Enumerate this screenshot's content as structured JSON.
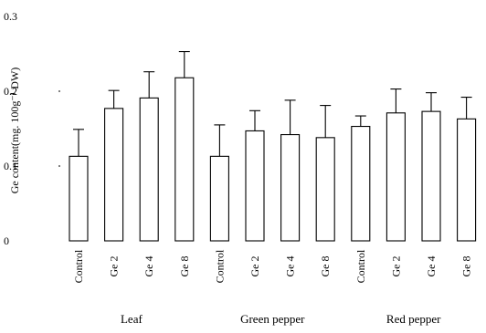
{
  "chart_data": {
    "type": "bar",
    "ylabel": "Ge content(mg. 100g⁻¹ DW)",
    "ylim": [
      0,
      0.3
    ],
    "yticks": [
      "0",
      "0.1",
      "0.2",
      "0.3"
    ],
    "ytick_values": [
      0,
      0.1,
      0.2,
      0.3
    ],
    "grid": false,
    "categories": [
      "Control",
      "Ge 2",
      "Ge 4",
      "Ge 8",
      "Control",
      "Ge 2",
      "Ge 4",
      "Ge 8",
      "Control",
      "Ge 2",
      "Ge 4",
      "Ge 8"
    ],
    "groups": [
      "Leaf",
      "Green pepper",
      "Red pepper"
    ],
    "group_of_category": [
      0,
      0,
      0,
      0,
      1,
      1,
      1,
      1,
      2,
      2,
      2,
      2
    ],
    "values": [
      0.113,
      0.177,
      0.191,
      0.218,
      0.113,
      0.147,
      0.142,
      0.138,
      0.153,
      0.171,
      0.173,
      0.163
    ],
    "errors": [
      0.036,
      0.024,
      0.035,
      0.035,
      0.042,
      0.027,
      0.046,
      0.043,
      0.014,
      0.032,
      0.025,
      0.029
    ]
  }
}
